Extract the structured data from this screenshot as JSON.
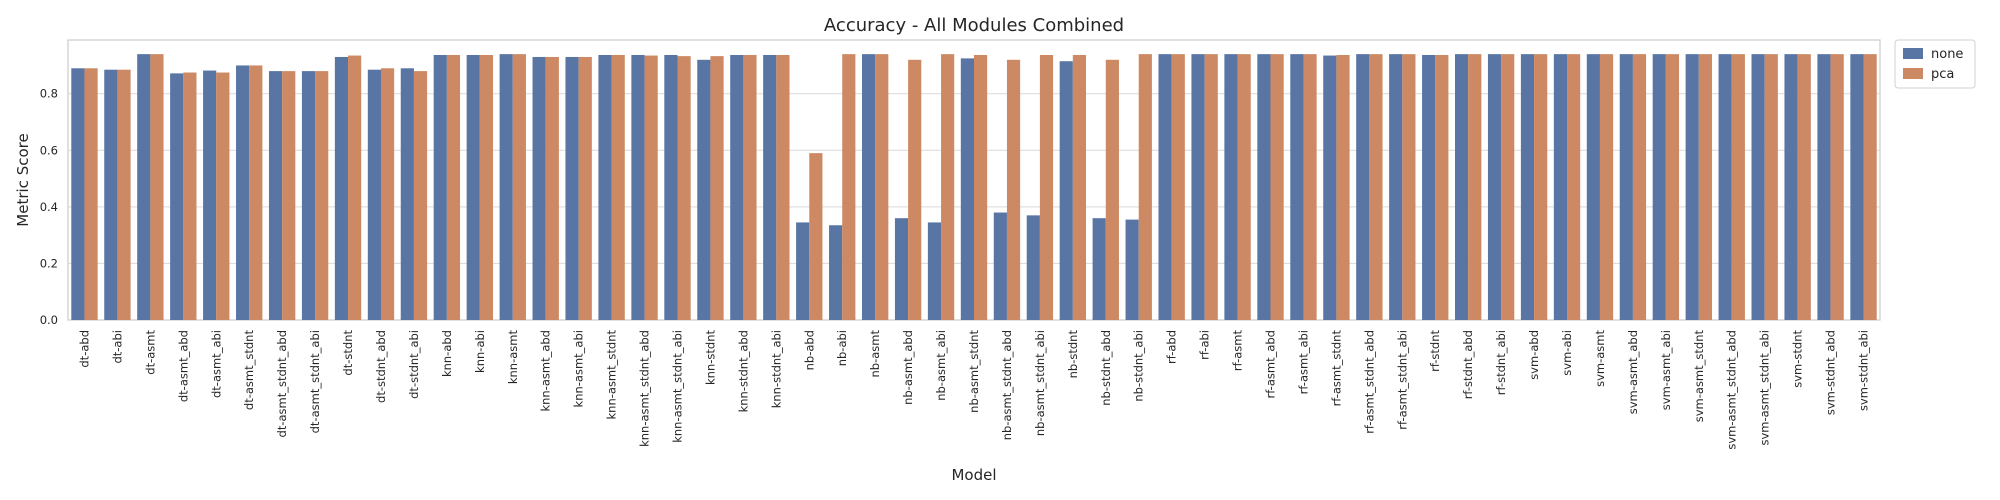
{
  "chart_data": {
    "type": "bar",
    "title": "Accuracy - All Modules Combined",
    "xlabel": "Model",
    "ylabel": "Metric Score",
    "ylim": [
      0,
      0.99
    ],
    "yticks": [
      "0.0",
      "0.2",
      "0.4",
      "0.6",
      "0.8"
    ],
    "grid": true,
    "legend_position": "outside-top-right",
    "categories": [
      "dt-abd",
      "dt-abi",
      "dt-asmt",
      "dt-asmt_abd",
      "dt-asmt_abi",
      "dt-asmt_stdnt",
      "dt-asmt_stdnt_abd",
      "dt-asmt_stdnt_abi",
      "dt-stdnt",
      "dt-stdnt_abd",
      "dt-stdnt_abi",
      "knn-abd",
      "knn-abi",
      "knn-asmt",
      "knn-asmt_abd",
      "knn-asmt_abi",
      "knn-asmt_stdnt",
      "knn-asmt_stdnt_abd",
      "knn-asmt_stdnt_abi",
      "knn-stdnt",
      "knn-stdnt_abd",
      "knn-stdnt_abi",
      "nb-abd",
      "nb-abi",
      "nb-asmt",
      "nb-asmt_abd",
      "nb-asmt_abi",
      "nb-asmt_stdnt",
      "nb-asmt_stdnt_abd",
      "nb-asmt_stdnt_abi",
      "nb-stdnt",
      "nb-stdnt_abd",
      "nb-stdnt_abi",
      "rf-abd",
      "rf-abi",
      "rf-asmt",
      "rf-asmt_abd",
      "rf-asmt_abi",
      "rf-asmt_stdnt",
      "rf-asmt_stdnt_abd",
      "rf-asmt_stdnt_abi",
      "rf-stdnt",
      "rf-stdnt_abd",
      "rf-stdnt_abi",
      "svm-abd",
      "svm-abi",
      "svm-asmt",
      "svm-asmt_abd",
      "svm-asmt_abi",
      "svm-asmt_stdnt",
      "svm-asmt_stdnt_abd",
      "svm-asmt_stdnt_abi",
      "svm-stdnt",
      "svm-stdnt_abd",
      "svm-stdnt_abi"
    ],
    "series": [
      {
        "name": "none",
        "color": "#5975a4",
        "values": [
          0.89,
          0.885,
          0.94,
          0.872,
          0.882,
          0.9,
          0.88,
          0.88,
          0.93,
          0.885,
          0.89,
          0.937,
          0.937,
          0.94,
          0.93,
          0.93,
          0.937,
          0.937,
          0.937,
          0.92,
          0.937,
          0.937,
          0.345,
          0.335,
          0.94,
          0.36,
          0.345,
          0.925,
          0.38,
          0.37,
          0.915,
          0.36,
          0.355,
          0.94,
          0.94,
          0.94,
          0.94,
          0.94,
          0.935,
          0.94,
          0.94,
          0.937,
          0.94,
          0.94,
          0.94,
          0.94,
          0.94,
          0.94,
          0.94,
          0.94,
          0.94,
          0.94,
          0.94,
          0.94,
          0.94
        ]
      },
      {
        "name": "pca",
        "color": "#cc8963",
        "values": [
          0.89,
          0.885,
          0.94,
          0.875,
          0.875,
          0.9,
          0.88,
          0.88,
          0.935,
          0.89,
          0.88,
          0.937,
          0.937,
          0.94,
          0.93,
          0.93,
          0.937,
          0.935,
          0.933,
          0.933,
          0.937,
          0.937,
          0.59,
          0.94,
          0.94,
          0.92,
          0.94,
          0.937,
          0.92,
          0.937,
          0.937,
          0.92,
          0.94,
          0.94,
          0.94,
          0.94,
          0.94,
          0.94,
          0.937,
          0.94,
          0.94,
          0.937,
          0.94,
          0.94,
          0.94,
          0.94,
          0.94,
          0.94,
          0.94,
          0.94,
          0.94,
          0.94,
          0.94,
          0.94,
          0.94
        ]
      }
    ]
  }
}
